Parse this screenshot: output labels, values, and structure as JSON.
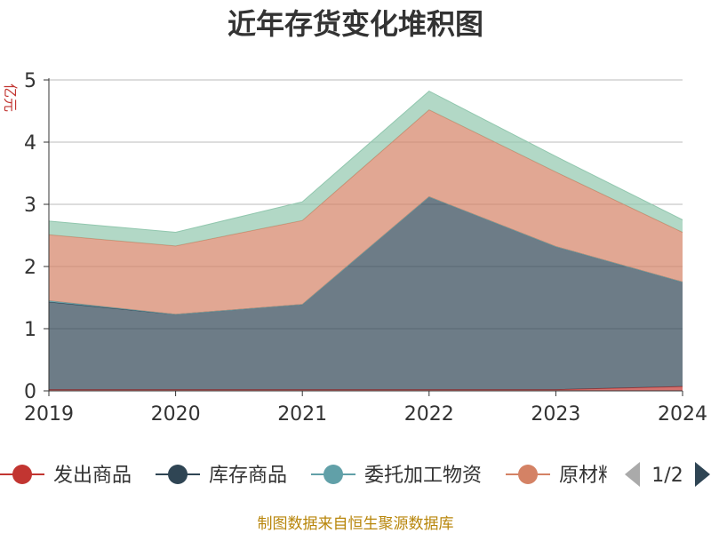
{
  "chart_data": {
    "type": "area",
    "title": "近年存货变化堆积图",
    "ylabel": "亿元",
    "categories": [
      "2019",
      "2020",
      "2021",
      "2022",
      "2023",
      "2024"
    ],
    "ylim": [
      0,
      5
    ],
    "yticks": [
      "0",
      "1",
      "2",
      "3",
      "4",
      "5"
    ],
    "grid": true,
    "stacked": true,
    "series": [
      {
        "name": "发出商品",
        "color": "#c23531",
        "values": [
          0.02,
          0.02,
          0.02,
          0.02,
          0.02,
          0.07
        ]
      },
      {
        "name": "库存商品",
        "color": "#2f4554",
        "values": [
          1.41,
          1.21,
          1.37,
          3.1,
          2.3,
          1.68
        ]
      },
      {
        "name": "委托加工物资",
        "color": "#61a0a8",
        "values": [
          0.02,
          0.0,
          0.0,
          0.0,
          0.0,
          0.0
        ]
      },
      {
        "name": "原材料",
        "color": "#d48265",
        "values": [
          1.06,
          1.1,
          1.35,
          1.4,
          1.2,
          0.8
        ]
      },
      {
        "name": "",
        "color": "#91c7ae",
        "values": [
          0.22,
          0.22,
          0.3,
          0.3,
          0.25,
          0.2
        ]
      }
    ],
    "legend": {
      "position": "bottom",
      "page": "1/2"
    }
  },
  "footer": {
    "source": "制图数据来自恒生聚源数据库"
  }
}
